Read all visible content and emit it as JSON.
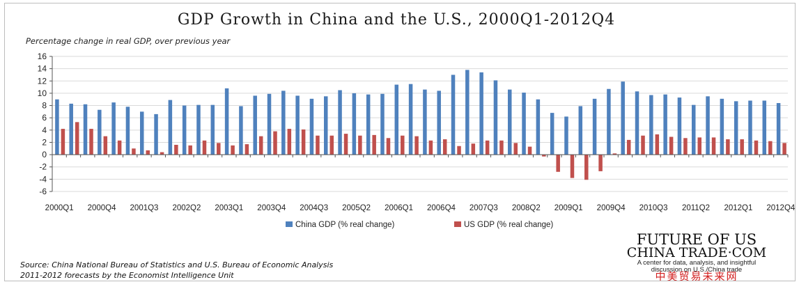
{
  "chart_data": {
    "type": "bar",
    "title": "GDP Growth in China and the U.S., 2000Q1-2012Q4",
    "subtitle": "Percentage change in real GDP, over previous year",
    "ylim": [
      -6,
      16
    ],
    "yticks": [
      -6,
      -4,
      -2,
      0,
      2,
      4,
      6,
      8,
      10,
      12,
      14,
      16
    ],
    "xtick_labels": [
      "2000Q1",
      "2000Q4",
      "2001Q3",
      "2002Q2",
      "2003Q1",
      "2003Q4",
      "2004Q3",
      "2005Q2",
      "2006Q1",
      "2006Q4",
      "2007Q3",
      "2008Q2",
      "2009Q1",
      "2009Q4",
      "2010Q3",
      "2011Q2",
      "2012Q1",
      "2012Q4"
    ],
    "categories": [
      "2000Q1",
      "2000Q2",
      "2000Q3",
      "2000Q4",
      "2001Q1",
      "2001Q2",
      "2001Q3",
      "2001Q4",
      "2002Q1",
      "2002Q2",
      "2002Q3",
      "2002Q4",
      "2003Q1",
      "2003Q2",
      "2003Q3",
      "2003Q4",
      "2004Q1",
      "2004Q2",
      "2004Q3",
      "2004Q4",
      "2005Q1",
      "2005Q2",
      "2005Q3",
      "2005Q4",
      "2006Q1",
      "2006Q2",
      "2006Q3",
      "2006Q4",
      "2007Q1",
      "2007Q2",
      "2007Q3",
      "2007Q4",
      "2008Q1",
      "2008Q2",
      "2008Q3",
      "2008Q4",
      "2009Q1",
      "2009Q2",
      "2009Q3",
      "2009Q4",
      "2010Q1",
      "2010Q2",
      "2010Q3",
      "2010Q4",
      "2011Q1",
      "2011Q2",
      "2011Q3",
      "2011Q4",
      "2012Q1",
      "2012Q2",
      "2012Q3",
      "2012Q4"
    ],
    "series": [
      {
        "name": "China GDP (% real change)",
        "color": "#4f81bd",
        "values": [
          9.0,
          8.3,
          8.2,
          7.3,
          8.5,
          7.8,
          7.0,
          6.6,
          8.9,
          8.0,
          8.1,
          8.1,
          10.8,
          7.9,
          9.6,
          9.9,
          10.4,
          9.6,
          9.1,
          9.5,
          10.5,
          10.0,
          9.8,
          9.9,
          11.4,
          11.5,
          10.6,
          10.4,
          13.0,
          13.8,
          13.4,
          12.1,
          10.6,
          10.1,
          9.0,
          6.8,
          6.2,
          7.9,
          9.1,
          10.7,
          11.9,
          10.3,
          9.7,
          9.8,
          9.3,
          8.1,
          9.5,
          9.1,
          8.7,
          8.8,
          8.8,
          8.4
        ]
      },
      {
        "name": "US GDP (% real change)",
        "color": "#c0504d",
        "values": [
          4.2,
          5.3,
          4.2,
          3.0,
          2.3,
          1.0,
          0.7,
          0.4,
          1.6,
          1.5,
          2.3,
          1.9,
          1.5,
          1.7,
          3.0,
          3.8,
          4.2,
          4.1,
          3.1,
          3.1,
          3.4,
          3.1,
          3.2,
          2.7,
          3.1,
          3.0,
          2.3,
          2.5,
          1.4,
          1.8,
          2.3,
          2.3,
          1.9,
          1.3,
          -0.3,
          -2.8,
          -3.8,
          -4.1,
          -2.7,
          0.2,
          2.4,
          3.1,
          3.3,
          2.9,
          2.7,
          2.8,
          2.8,
          2.5,
          2.5,
          2.3,
          2.2,
          1.9
        ]
      }
    ],
    "grid": true,
    "legend_position": "bottom-center"
  },
  "source_line1": "Source:  China National Bureau of Statistics and U.S. Bureau of Economic Analysis",
  "source_line2": "2011-2012 forecasts by the Economist Intelligence Unit",
  "logo": {
    "line1": "FUTURE OF US",
    "line2": "CHINA TRADE·COM",
    "tagline1": "A center for data, analysis, and insightful",
    "tagline2": "discussion on U.S./China trade",
    "chinese": "中美贸易未来网"
  }
}
